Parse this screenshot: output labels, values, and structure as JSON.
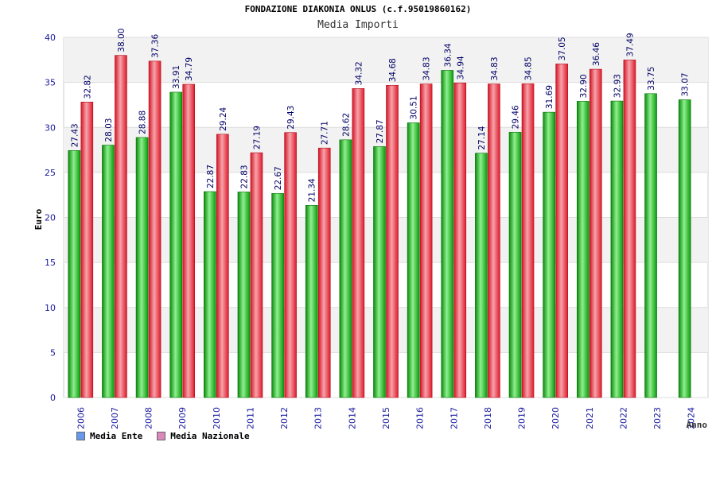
{
  "chart_data": {
    "type": "bar",
    "title": "FONDAZIONE DIAKONIA ONLUS (c.f.95019860162)",
    "subtitle": "Media Importi",
    "xlabel": "Anno",
    "ylabel": "Euro",
    "ylim": [
      0,
      40
    ],
    "yticks": [
      0,
      5,
      10,
      15,
      20,
      25,
      30,
      35,
      40
    ],
    "grid": true,
    "legend_position": "bottom-left",
    "categories": [
      "2006",
      "2007",
      "2008",
      "2009",
      "2010",
      "2011",
      "2012",
      "2013",
      "2014",
      "2015",
      "2016",
      "2017",
      "2018",
      "2019",
      "2020",
      "2021",
      "2022",
      "2023",
      "2024"
    ],
    "series": [
      {
        "name": "Media Ente",
        "color": "#22bb22",
        "legend_color": "#6699ee",
        "values": [
          27.43,
          28.03,
          28.88,
          33.91,
          22.87,
          22.83,
          22.67,
          21.34,
          28.62,
          27.87,
          30.51,
          36.34,
          27.14,
          29.46,
          31.69,
          32.9,
          32.93,
          33.75,
          33.07
        ],
        "labels": [
          "27.43",
          "28.03",
          "28.88",
          "33.91",
          "22.87",
          "22.83",
          "22.67",
          "21.34",
          "28.62",
          "27.87",
          "30.51",
          "36.34",
          "27.14",
          "29.46",
          "31.69",
          "32.90",
          "32.93",
          "33.75",
          "33.07"
        ]
      },
      {
        "name": "Media Nazionale",
        "color": "#ee2233",
        "legend_color": "#dd88bb",
        "values": [
          32.82,
          38.0,
          37.36,
          34.79,
          29.24,
          27.19,
          29.43,
          27.71,
          34.32,
          34.68,
          34.83,
          34.94,
          34.83,
          34.85,
          37.05,
          36.46,
          37.49,
          null,
          null
        ],
        "labels": [
          "32.82",
          "38.00",
          "37.36",
          "34.79",
          "29.24",
          "27.19",
          "29.43",
          "27.71",
          "34.32",
          "34.68",
          "34.83",
          "34.94",
          "34.83",
          "34.85",
          "37.05",
          "36.46",
          "37.49",
          null,
          null
        ]
      }
    ]
  }
}
